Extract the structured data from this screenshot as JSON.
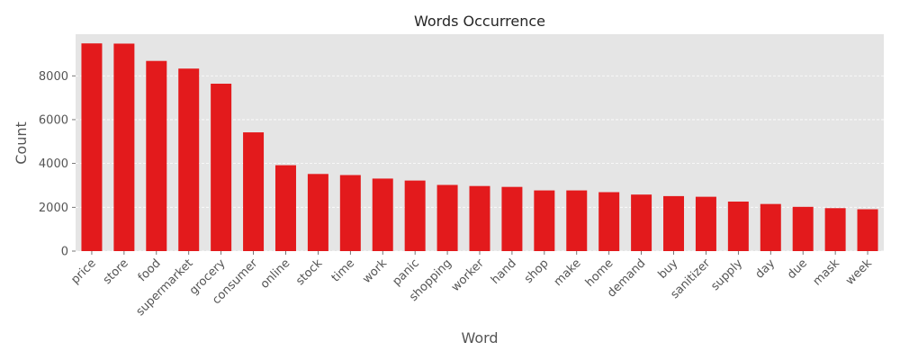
{
  "chart_data": {
    "type": "bar",
    "title": "Words Occurrence",
    "xlabel": "Word",
    "ylabel": "Count",
    "categories": [
      "price",
      "store",
      "food",
      "supermarket",
      "grocery",
      "consumer",
      "online",
      "stock",
      "time",
      "work",
      "panic",
      "shopping",
      "worker",
      "hand",
      "shop",
      "make",
      "home",
      "demand",
      "buy",
      "sanitizer",
      "supply",
      "day",
      "due",
      "mask",
      "week"
    ],
    "values": [
      9480,
      9470,
      8680,
      8330,
      7640,
      5420,
      3920,
      3520,
      3470,
      3310,
      3220,
      3020,
      2970,
      2930,
      2770,
      2770,
      2690,
      2580,
      2510,
      2480,
      2260,
      2150,
      2020,
      1960,
      1910
    ],
    "ylim": [
      0,
      9900
    ],
    "yticks": [
      0,
      2000,
      4000,
      6000,
      8000
    ],
    "bar_color": "#e31a1c",
    "background_color": "#e5e5e5",
    "grid": true,
    "grid_axis": "y",
    "grid_style": "dashed"
  }
}
